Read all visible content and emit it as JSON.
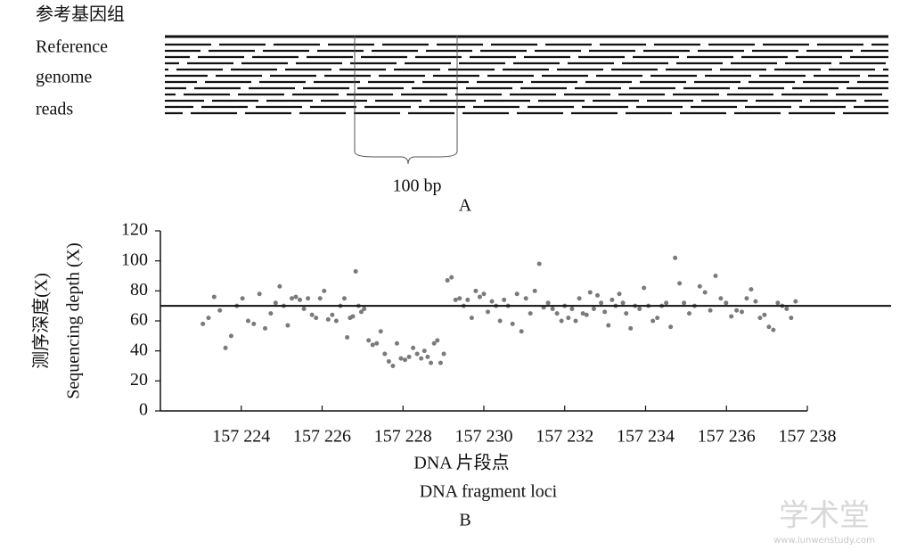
{
  "panel_a": {
    "labels": [
      "参考基因组",
      "Reference",
      "genome",
      "reads"
    ],
    "scale_label": "100 bp",
    "panel_label": "A"
  },
  "watermark": {
    "title": "学术堂",
    "url": "www.lunwenstudy.com"
  },
  "chart_data": {
    "type": "scatter",
    "panel_label": "B",
    "x_label": [
      "DNA 片段点",
      "DNA fragment loci"
    ],
    "y_label": [
      "测序深度(X)",
      "Sequencing depth (X)"
    ],
    "xlim": [
      157222,
      157238
    ],
    "xticks": [
      {
        "value": 157224,
        "label": "157 224"
      },
      {
        "value": 157226,
        "label": "157 226"
      },
      {
        "value": 157228,
        "label": "157 228"
      },
      {
        "value": 157230,
        "label": "157 230"
      },
      {
        "value": 157232,
        "label": "157 232"
      },
      {
        "value": 157234,
        "label": "157 234"
      },
      {
        "value": 157236,
        "label": "157 236"
      },
      {
        "value": 157238,
        "label": "157 238"
      }
    ],
    "ylim": [
      0,
      120
    ],
    "yticks": [
      0,
      20,
      40,
      60,
      80,
      100,
      120
    ],
    "reference_line": 70,
    "color": "#7a7a7a",
    "x": [
      157223.05,
      157223.19,
      157223.33,
      157223.47,
      157223.61,
      157223.75,
      157223.89,
      157224.03,
      157224.17,
      157224.31,
      157224.45,
      157224.59,
      157224.73,
      157224.85,
      157224.95,
      157225.05,
      157225.15,
      157225.25,
      157225.35,
      157225.45,
      157225.55,
      157225.65,
      157225.75,
      157225.85,
      157225.95,
      157226.05,
      157226.15,
      157226.25,
      157226.35,
      157226.45,
      157226.55,
      157226.62,
      157226.69,
      157226.76,
      157226.83,
      157226.9,
      157226.97,
      157227.04,
      157227.15,
      157227.25,
      157227.35,
      157227.45,
      157227.55,
      157227.65,
      157227.75,
      157227.85,
      157227.95,
      157228.05,
      157228.15,
      157228.25,
      157228.35,
      157228.45,
      157228.53,
      157228.61,
      157228.69,
      157228.77,
      157228.85,
      157228.93,
      157229.01,
      157229.1,
      157229.2,
      157229.3,
      157229.4,
      157229.5,
      157229.6,
      157229.7,
      157229.8,
      157229.9,
      157230.0,
      157230.1,
      157230.2,
      157230.3,
      157230.4,
      157230.5,
      157230.6,
      157230.71,
      157230.82,
      157230.93,
      157231.04,
      157231.15,
      157231.26,
      157231.37,
      157231.48,
      157231.59,
      157231.7,
      157231.81,
      157231.92,
      157232.0,
      157232.09,
      157232.18,
      157232.27,
      157232.36,
      157232.45,
      157232.54,
      157232.63,
      157232.72,
      157232.81,
      157232.9,
      157232.99,
      157233.08,
      157233.17,
      157233.26,
      157233.35,
      157233.44,
      157233.52,
      157233.63,
      157233.74,
      157233.85,
      157233.96,
      157234.07,
      157234.18,
      157234.29,
      157234.4,
      157234.51,
      157234.62,
      157234.73,
      157234.84,
      157234.95,
      157235.08,
      157235.21,
      157235.34,
      157235.47,
      157235.6,
      157235.73,
      157235.86,
      157235.99,
      157236.12,
      157236.25,
      157236.38,
      157236.5,
      157236.61,
      157236.72,
      157236.83,
      157236.94,
      157237.05,
      157237.16,
      157237.27,
      157237.38,
      157237.49,
      157237.6,
      157237.71
    ],
    "values": [
      58,
      62,
      76,
      67,
      42,
      50,
      70,
      75,
      60,
      58,
      78,
      55,
      65,
      72,
      83,
      70,
      57,
      75,
      76,
      74,
      68,
      75,
      64,
      62,
      75,
      80,
      61,
      64,
      60,
      70,
      75,
      49,
      62,
      63,
      93,
      70,
      66,
      68,
      47,
      44,
      45,
      53,
      38,
      33,
      30,
      45,
      35,
      34,
      36,
      42,
      38,
      35,
      40,
      36,
      32,
      45,
      47,
      32,
      38,
      87,
      89,
      74,
      75,
      70,
      74,
      62,
      80,
      76,
      78,
      66,
      73,
      70,
      60,
      74,
      70,
      58,
      78,
      53,
      75,
      65,
      80,
      98,
      69,
      72,
      68,
      65,
      60,
      70,
      62,
      68,
      60,
      75,
      65,
      64,
      79,
      68,
      77,
      72,
      66,
      57,
      74,
      70,
      78,
      72,
      65,
      55,
      70,
      68,
      82,
      70,
      60,
      62,
      70,
      72,
      56,
      102,
      85,
      72,
      65,
      70,
      83,
      79,
      67,
      90,
      75,
      72,
      63,
      67,
      66,
      75,
      81,
      73,
      62,
      64,
      56,
      54,
      72,
      70,
      68,
      62,
      73
    ]
  }
}
